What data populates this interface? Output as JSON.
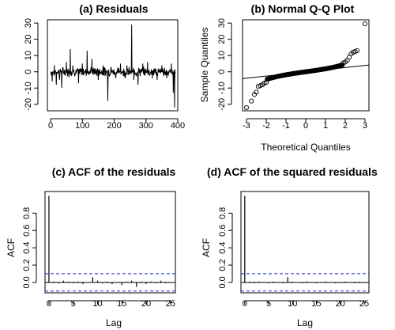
{
  "chart_data": [
    {
      "id": "residuals",
      "type": "line",
      "title": "(a)  Residuals",
      "xlabel": "",
      "ylabel": "",
      "xlim": [
        -10,
        400
      ],
      "ylim": [
        -24,
        32
      ],
      "xticks": [
        0,
        100,
        200,
        300,
        400
      ],
      "yticks": [
        -20,
        -10,
        0,
        10,
        20,
        30
      ],
      "color": "#000000",
      "spikes": [
        {
          "x": 5,
          "y": -6
        },
        {
          "x": 12,
          "y": 4
        },
        {
          "x": 18,
          "y": -8
        },
        {
          "x": 28,
          "y": -5
        },
        {
          "x": 35,
          "y": -10
        },
        {
          "x": 50,
          "y": 6
        },
        {
          "x": 62,
          "y": 14
        },
        {
          "x": 70,
          "y": 4
        },
        {
          "x": 88,
          "y": -7
        },
        {
          "x": 100,
          "y": 5
        },
        {
          "x": 115,
          "y": 13
        },
        {
          "x": 130,
          "y": 8
        },
        {
          "x": 150,
          "y": -5
        },
        {
          "x": 165,
          "y": 4
        },
        {
          "x": 180,
          "y": -18
        },
        {
          "x": 190,
          "y": 3
        },
        {
          "x": 205,
          "y": -4
        },
        {
          "x": 220,
          "y": 5
        },
        {
          "x": 235,
          "y": -4
        },
        {
          "x": 240,
          "y": 4
        },
        {
          "x": 255,
          "y": 29
        },
        {
          "x": 262,
          "y": -5
        },
        {
          "x": 275,
          "y": -8
        },
        {
          "x": 290,
          "y": 5
        },
        {
          "x": 305,
          "y": 6
        },
        {
          "x": 320,
          "y": -4
        },
        {
          "x": 335,
          "y": -5
        },
        {
          "x": 350,
          "y": 4
        },
        {
          "x": 365,
          "y": -4
        },
        {
          "x": 380,
          "y": 5
        },
        {
          "x": 386,
          "y": -13
        },
        {
          "x": 390,
          "y": -22
        }
      ]
    },
    {
      "id": "qqplot",
      "type": "scatter",
      "title": "(b)  Normal Q-Q Plot",
      "xlabel": "Theoretical Quantiles",
      "ylabel": "Sample Quantiles",
      "xlim": [
        -3.2,
        3.2
      ],
      "ylim": [
        -24,
        32
      ],
      "xticks": [
        -3,
        -2,
        -1,
        0,
        1,
        2,
        3
      ],
      "yticks": [
        -20,
        -10,
        0,
        10,
        20,
        30
      ],
      "color": "#000000",
      "reference_line": {
        "x": [
          -3.2,
          3.2
        ],
        "y": [
          -4.2,
          4.2
        ]
      },
      "tail_points": [
        {
          "x": -3.0,
          "y": -22
        },
        {
          "x": -2.75,
          "y": -18
        },
        {
          "x": -2.6,
          "y": -14
        },
        {
          "x": -2.5,
          "y": -12.5
        },
        {
          "x": -2.4,
          "y": -9
        },
        {
          "x": -2.3,
          "y": -8.5
        },
        {
          "x": -2.2,
          "y": -8
        },
        {
          "x": -2.1,
          "y": -7
        },
        {
          "x": -2.0,
          "y": -6.5
        },
        {
          "x": 1.9,
          "y": 5.5
        },
        {
          "x": 2.0,
          "y": 6
        },
        {
          "x": 2.1,
          "y": 7
        },
        {
          "x": 2.2,
          "y": 9
        },
        {
          "x": 2.3,
          "y": 11
        },
        {
          "x": 2.4,
          "y": 12
        },
        {
          "x": 2.5,
          "y": 12.5
        },
        {
          "x": 2.6,
          "y": 13
        },
        {
          "x": 3.0,
          "y": 29.5
        }
      ],
      "body": {
        "x_from": -1.95,
        "x_to": 1.85,
        "n": 130,
        "scale": 2.2
      }
    },
    {
      "id": "acf_residuals",
      "type": "bar",
      "title": "(c)  ACF of the residuals",
      "xlabel": "Lag",
      "ylabel": "ACF",
      "xlim": [
        -0.8,
        26
      ],
      "ylim": [
        -0.12,
        1.05
      ],
      "xticks": [
        0,
        5,
        10,
        15,
        20,
        25
      ],
      "yticks": [
        0.0,
        0.2,
        0.4,
        0.6,
        0.8
      ],
      "ci": 0.1,
      "lags": [
        0,
        1,
        2,
        3,
        4,
        5,
        6,
        7,
        8,
        9,
        10,
        11,
        12,
        13,
        14,
        15,
        16,
        17,
        18,
        19,
        20,
        21,
        22,
        23,
        24,
        25
      ],
      "values": [
        1.0,
        0.01,
        -0.01,
        0.02,
        0.01,
        -0.01,
        0.01,
        -0.02,
        0.0,
        0.06,
        0.02,
        -0.01,
        0.01,
        -0.02,
        0.0,
        -0.03,
        0.01,
        0.02,
        -0.05,
        0.01,
        -0.02,
        0.01,
        -0.01,
        0.02,
        -0.01,
        0.0
      ],
      "bar_color": "#000000",
      "ci_color": "#1f2fd6"
    },
    {
      "id": "acf_squared",
      "type": "bar",
      "title": "(d)  ACF of the squared residuals",
      "xlabel": "Lag",
      "ylabel": "ACF",
      "xlim": [
        -0.8,
        26
      ],
      "ylim": [
        -0.12,
        1.05
      ],
      "xticks": [
        0,
        5,
        10,
        15,
        20,
        25
      ],
      "yticks": [
        0.0,
        0.2,
        0.4,
        0.6,
        0.8
      ],
      "ci": 0.1,
      "lags": [
        0,
        1,
        2,
        3,
        4,
        5,
        6,
        7,
        8,
        9,
        10,
        11,
        12,
        13,
        14,
        15,
        16,
        17,
        18,
        19,
        20,
        21,
        22,
        23,
        24,
        25
      ],
      "values": [
        1.0,
        0.01,
        -0.01,
        0.01,
        0.0,
        -0.01,
        0.01,
        0.0,
        -0.01,
        0.06,
        0.01,
        0.0,
        -0.01,
        0.01,
        0.0,
        -0.01,
        0.0,
        0.01,
        0.0,
        -0.01,
        0.0,
        0.01,
        0.0,
        -0.01,
        0.01,
        0.0
      ],
      "bar_color": "#000000",
      "ci_color": "#1f2fd6"
    }
  ]
}
